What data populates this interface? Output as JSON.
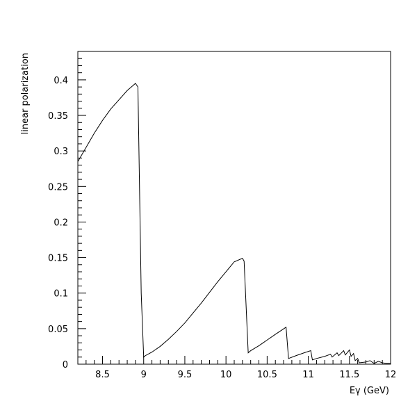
{
  "chart_data": {
    "type": "line",
    "xlabel": "Eγ (GeV)",
    "ylabel": "linear polarization",
    "xlim": [
      8.2,
      12.0
    ],
    "ylim": [
      0.0,
      0.44
    ],
    "grid": false,
    "x_ticks": [
      8.5,
      9.0,
      9.5,
      10.0,
      10.5,
      11.0,
      11.5,
      12.0
    ],
    "x_tick_labels": [
      "8.5",
      "9",
      "9.5",
      "10",
      "10.5",
      "11",
      "11.5",
      "12"
    ],
    "y_ticks": [
      0.0,
      0.05,
      0.1,
      0.15,
      0.2,
      0.25,
      0.3,
      0.35,
      0.4
    ],
    "y_tick_labels": [
      "0",
      "0.05",
      "0.1",
      "0.15",
      "0.2",
      "0.25",
      "0.3",
      "0.35",
      "0.4"
    ],
    "series": [
      {
        "color": "#000000",
        "points": [
          [
            8.2,
            0.285
          ],
          [
            8.3,
            0.305
          ],
          [
            8.4,
            0.325
          ],
          [
            8.5,
            0.343
          ],
          [
            8.6,
            0.359
          ],
          [
            8.7,
            0.372
          ],
          [
            8.8,
            0.385
          ],
          [
            8.9,
            0.395
          ],
          [
            8.93,
            0.39
          ],
          [
            8.97,
            0.1
          ],
          [
            9.0,
            0.01
          ],
          [
            9.02,
            0.012
          ],
          [
            9.1,
            0.017
          ],
          [
            9.2,
            0.025
          ],
          [
            9.3,
            0.035
          ],
          [
            9.4,
            0.046
          ],
          [
            9.5,
            0.058
          ],
          [
            9.6,
            0.072
          ],
          [
            9.7,
            0.086
          ],
          [
            9.8,
            0.101
          ],
          [
            9.9,
            0.116
          ],
          [
            10.0,
            0.13
          ],
          [
            10.1,
            0.144
          ],
          [
            10.2,
            0.149
          ],
          [
            10.22,
            0.145
          ],
          [
            10.27,
            0.016
          ],
          [
            10.3,
            0.019
          ],
          [
            10.4,
            0.026
          ],
          [
            10.5,
            0.034
          ],
          [
            10.6,
            0.042
          ],
          [
            10.73,
            0.052
          ],
          [
            10.76,
            0.008
          ],
          [
            10.85,
            0.012
          ],
          [
            10.95,
            0.016
          ],
          [
            11.03,
            0.019
          ],
          [
            11.05,
            0.006
          ],
          [
            11.1,
            0.008
          ],
          [
            11.2,
            0.011
          ],
          [
            11.27,
            0.014
          ],
          [
            11.29,
            0.01
          ],
          [
            11.35,
            0.016
          ],
          [
            11.37,
            0.012
          ],
          [
            11.43,
            0.019
          ],
          [
            11.45,
            0.013
          ],
          [
            11.5,
            0.02
          ],
          [
            11.52,
            0.011
          ],
          [
            11.55,
            0.015
          ],
          [
            11.57,
            0.005
          ],
          [
            11.6,
            0.008
          ],
          [
            11.62,
            0.002
          ],
          [
            11.7,
            0.003
          ],
          [
            11.75,
            0.005
          ],
          [
            11.8,
            0.001
          ],
          [
            11.85,
            0.004
          ],
          [
            11.9,
            0.002
          ],
          [
            11.95,
            0.001
          ],
          [
            12.0,
            0.001
          ]
        ]
      }
    ]
  }
}
